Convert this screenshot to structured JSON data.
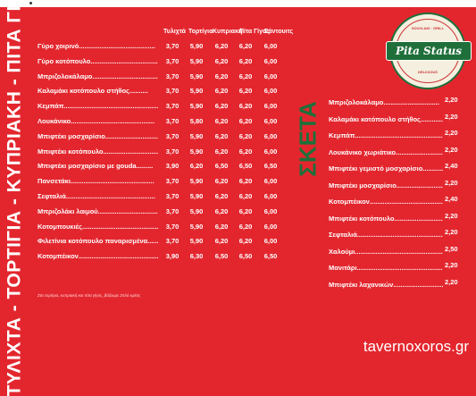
{
  "vertical_title": "ΤΥΛΙΧΤΑ - ΤΟΡΤΙΓΙΑ - ΚΥΠΡΙΑΚΗ - ΠΙΤΑ ΓΙΓΑΣ",
  "headers": [
    "Τυλιχτά",
    "Τορτίγια",
    "Κυπριακή",
    "Πίτα Γίγας",
    "Σάντουιτς"
  ],
  "items": [
    {
      "name": "Γύρο χοιρινό.........................................",
      "prices": [
        "3,70",
        "5,90",
        "6,20",
        "6,20",
        "6,00"
      ]
    },
    {
      "name": "Γύρο κοτόπουλο.....................................",
      "prices": [
        "3,70",
        "5,90",
        "6,20",
        "6,20",
        "6,00"
      ]
    },
    {
      "name": "Μπριζολοκάλαμο.....................................",
      "prices": [
        "3,70",
        "5,90",
        "6,20",
        "6,20",
        "6,00"
      ]
    },
    {
      "name": "Καλαμάκι κοτόπουλο στήθος..........",
      "prices": [
        "3,70",
        "5,90",
        "6,20",
        "6,20",
        "6,00"
      ]
    },
    {
      "name": "Κεμπάπ...................................................",
      "prices": [
        "3,70",
        "5,90",
        "6,20",
        "6,20",
        "6,00"
      ]
    },
    {
      "name": "Λουκάνικο.............................................",
      "prices": [
        "3,70",
        "5,80",
        "6,20",
        "6,20",
        "6,00"
      ]
    },
    {
      "name": "Μπιφτέκι μοσχαρίσιο...............................",
      "prices": [
        "3,70",
        "5,90",
        "6,20",
        "6,20",
        "6,00"
      ]
    },
    {
      "name": "Μπιφτέκι κοτόπουλο.................................",
      "prices": [
        "3,70",
        "5,90",
        "6,20",
        "6,20",
        "6,00"
      ]
    },
    {
      "name": "Μπιφτέκι μοσχαρίσιο με gouda.........",
      "prices": [
        "3,90",
        "6,20",
        "6,50",
        "6,50",
        "6,50"
      ]
    },
    {
      "name": "Πανσετάκι.............................................",
      "prices": [
        "3,70",
        "5,90",
        "6,20",
        "6,20",
        "6,00"
      ]
    },
    {
      "name": "Σεφταλιά................................................",
      "prices": [
        "3,70",
        "5,90",
        "6,20",
        "6,20",
        "6,00"
      ]
    },
    {
      "name": "Μπριζολάκι λαιμού..................................",
      "prices": [
        "3,70",
        "5,90",
        "6,20",
        "6,20",
        "6,00"
      ]
    },
    {
      "name": "Κοτομπουκιές...........................................",
      "prices": [
        "3,70",
        "5,90",
        "6,20",
        "6,20",
        "6,00"
      ]
    },
    {
      "name": "Φιλετίνια κοτόπουλο παναρισμένα.........",
      "prices": [
        "3,70",
        "5,90",
        "6,20",
        "6,20",
        "6,00"
      ]
    },
    {
      "name": "Κοτομπέικον.............................................",
      "prices": [
        "3,90",
        "6,30",
        "6,50",
        "6,50",
        "6,50"
      ]
    }
  ],
  "note": "Στα τορτίγια, κυπριακή και πίτα γίγας, βάζουμε 2πλό κρέας",
  "sketa_title": "ΣΚΕΤΑ",
  "sketa_items": [
    {
      "name": "Μπριζολοκάλαμο..............................",
      "price": "2,20"
    },
    {
      "name": "Καλαμάκι κοτόπουλο στήθος...............",
      "price": "2,20"
    },
    {
      "name": "Κεμπάπ..................................................",
      "price": "2,20"
    },
    {
      "name": "Λουκάνικο χωριάτικο..........................",
      "price": "2,20"
    },
    {
      "name": "Μπιφτέκι γεμιστό μοσχαρίσιο.............",
      "price": "2,40"
    },
    {
      "name": "Μπιφτέκι μοσχαρίσιο............................",
      "price": "2,20"
    },
    {
      "name": "Κοτομπέικον...........................................",
      "price": "2,40"
    },
    {
      "name": "Μπιφτέκι κοτόπουλο..............................",
      "price": "2,20"
    },
    {
      "name": "Σεφταλιά..................................................",
      "price": "2,20"
    },
    {
      "name": "Χαλούμι.....................................................",
      "price": "2,50"
    },
    {
      "name": "Μανιτάρι...................................................",
      "price": "2,20"
    },
    {
      "name": "Μπιφτέκι λαχανικών................................",
      "price": "2,20"
    }
  ],
  "logo": {
    "name": "Pita Status",
    "top_text": "SOUVLAKI · GRILL",
    "bottom_text": "DELICIOUS"
  },
  "watermark": "tavernoxoros.gr",
  "colors": {
    "background": "#e3262e",
    "sketa": "#1f6f3a",
    "logo_green": "#1f6f3a"
  }
}
